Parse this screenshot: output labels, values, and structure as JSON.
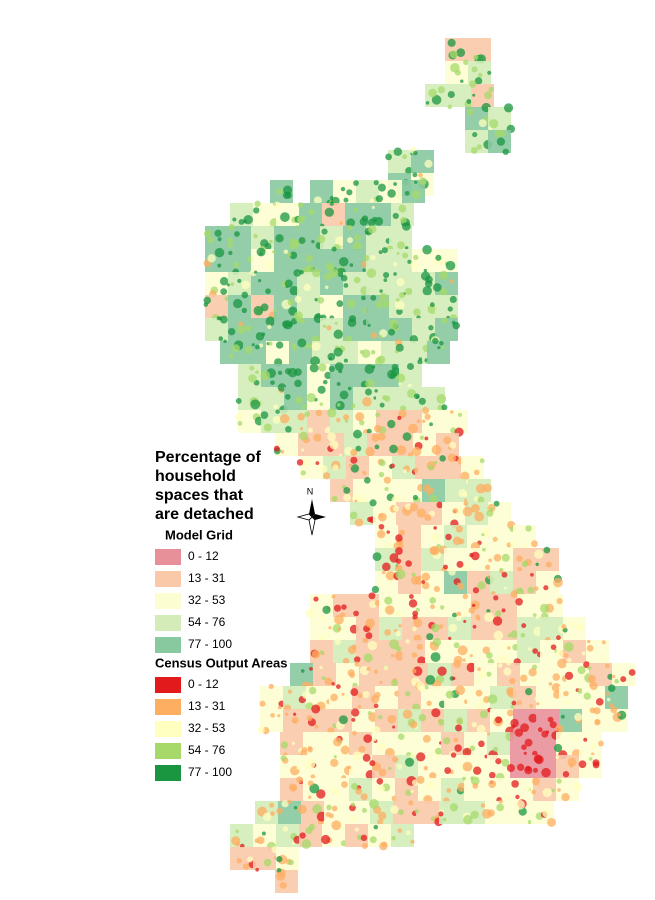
{
  "legend": {
    "title_lines": [
      "Percentage of",
      "household",
      "spaces that",
      "are detached"
    ],
    "sections": [
      {
        "title": "Model Grid",
        "items": [
          {
            "label": "0 - 12",
            "color": "#e8909a"
          },
          {
            "label": "13 - 31",
            "color": "#f9c9a8"
          },
          {
            "label": "32 - 53",
            "color": "#fdfdd2"
          },
          {
            "label": "54 - 76",
            "color": "#d3ecb8"
          },
          {
            "label": "77 - 100",
            "color": "#88c9a0"
          }
        ]
      },
      {
        "title": "Census Output Areas",
        "items": [
          {
            "label": "0 - 12",
            "color": "#e31a1c"
          },
          {
            "label": "13 - 31",
            "color": "#fdae61"
          },
          {
            "label": "32 - 53",
            "color": "#ffffbf"
          },
          {
            "label": "54 - 76",
            "color": "#a6d96a"
          },
          {
            "label": "77 - 100",
            "color": "#1a9641"
          }
        ]
      }
    ]
  },
  "compass": {
    "label": "N"
  }
}
